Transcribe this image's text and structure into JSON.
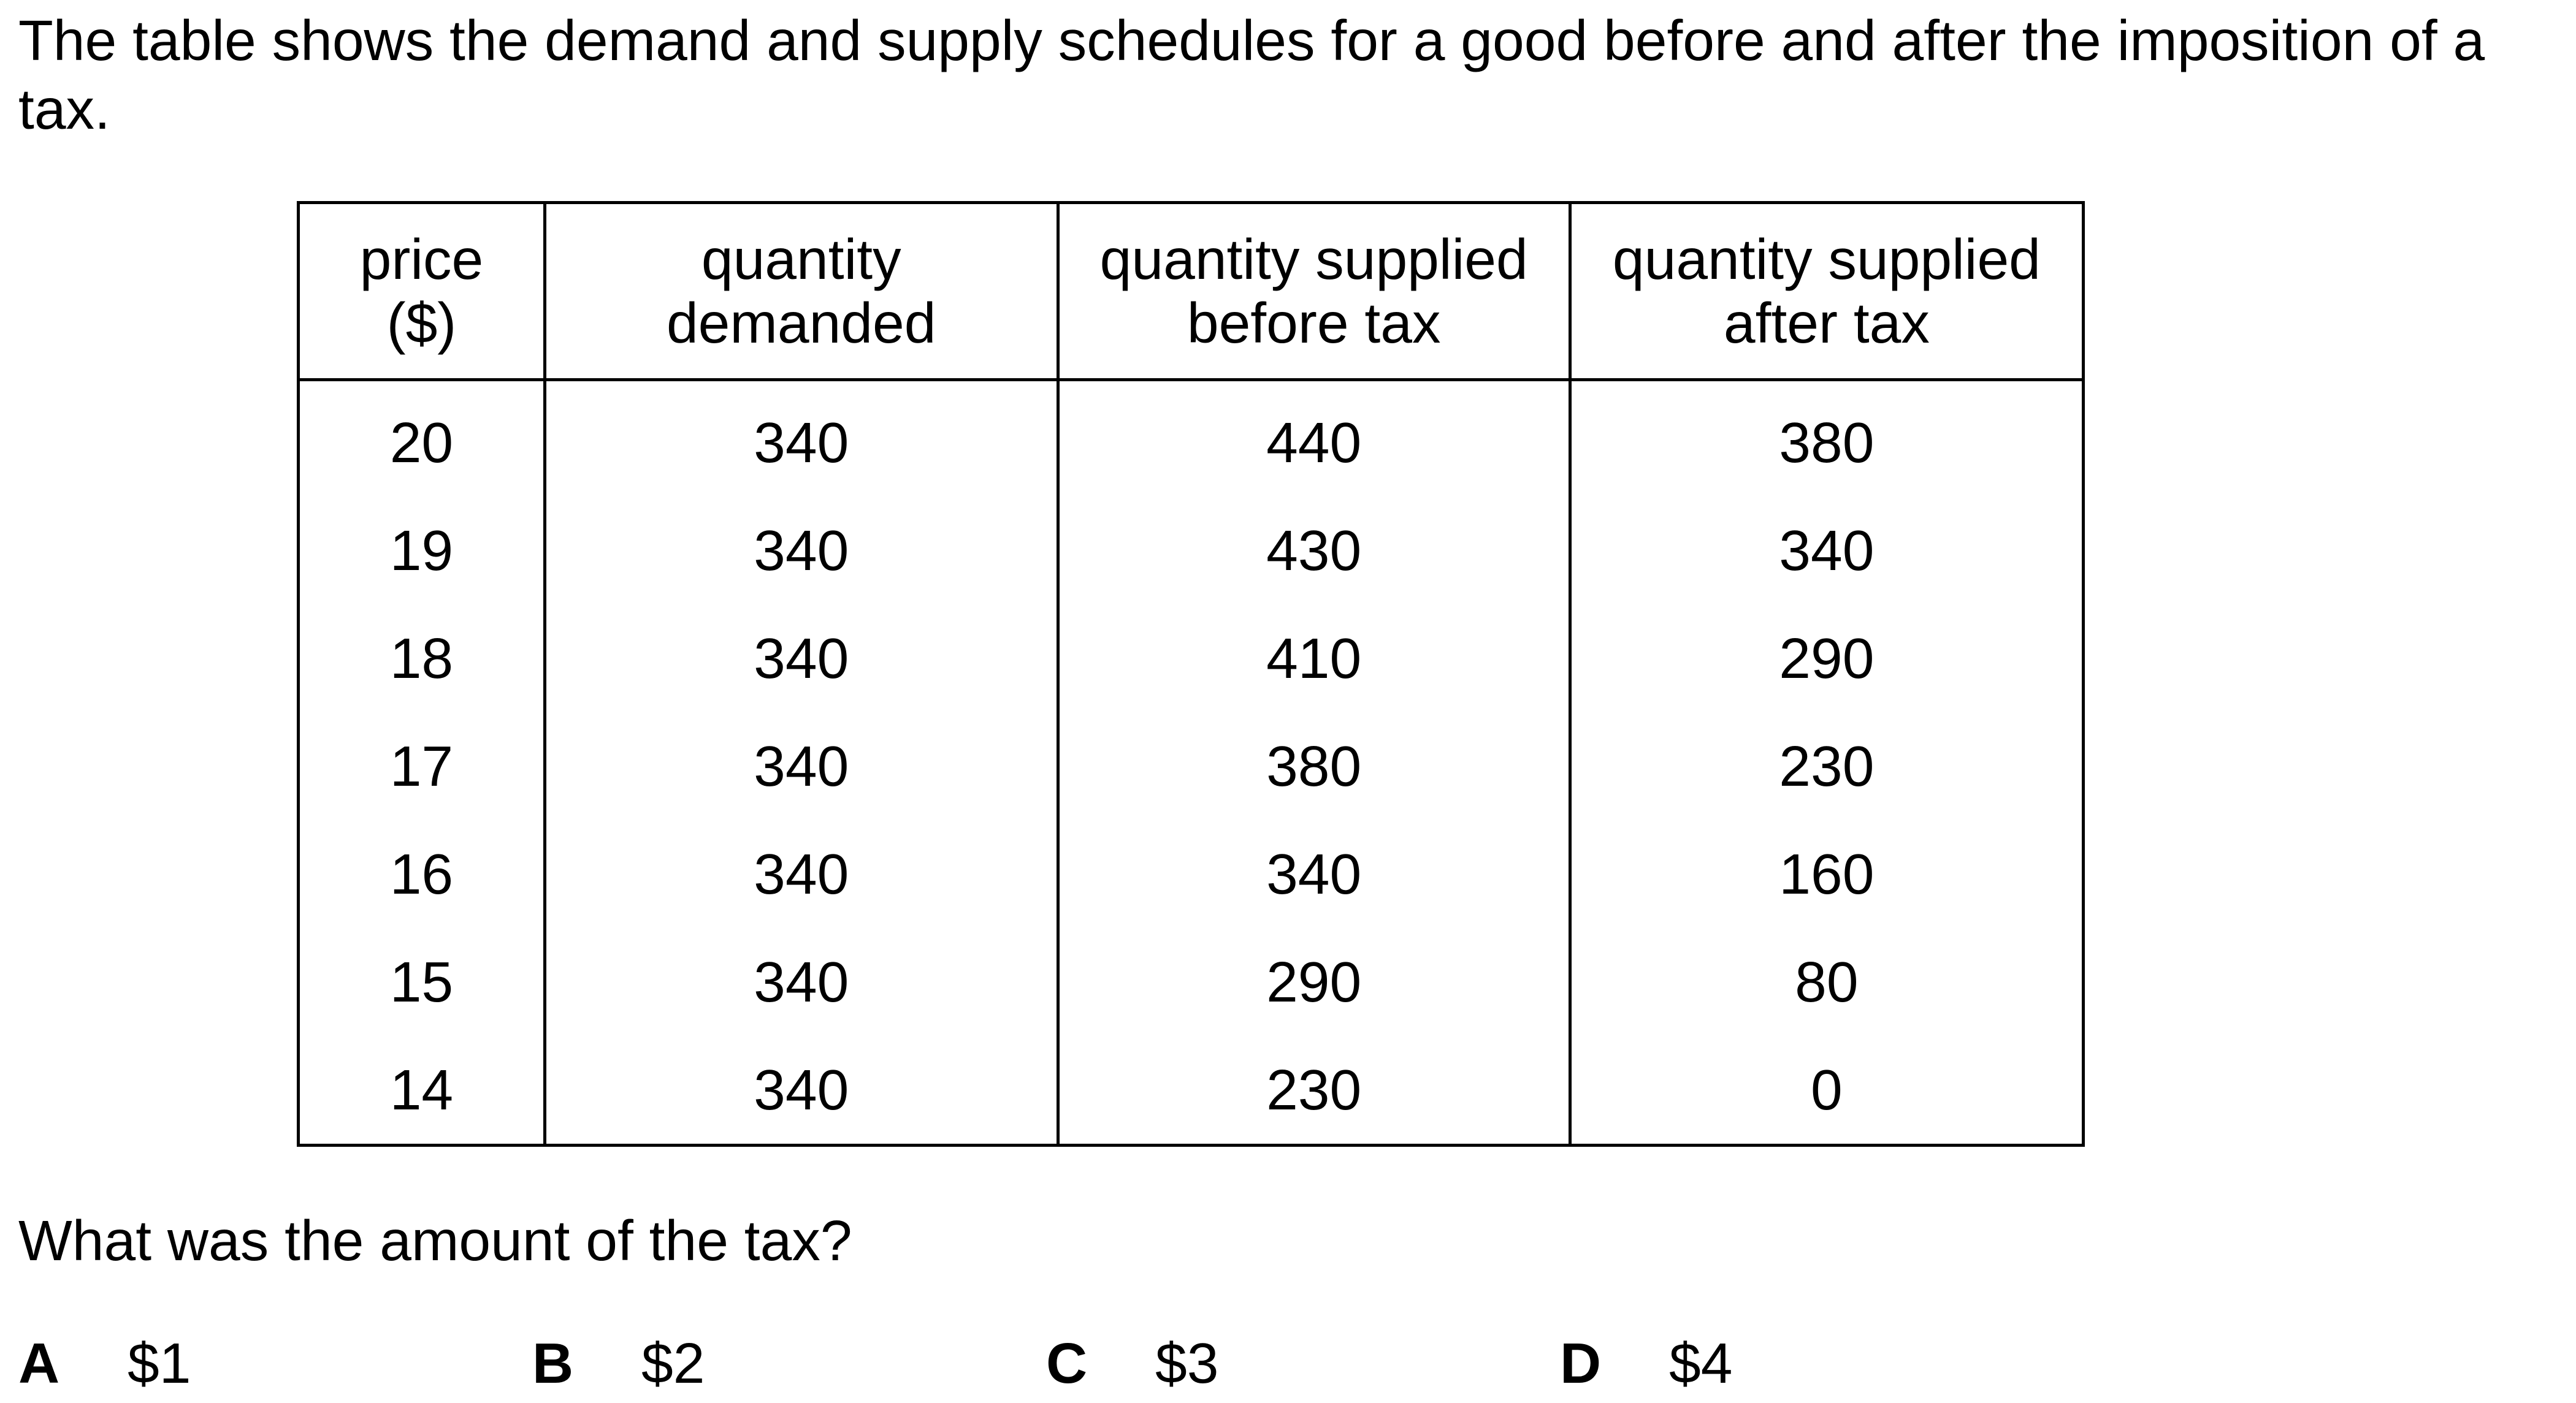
{
  "intro_text": "The table shows the demand and supply schedules for a good before and after the imposition of a tax.",
  "table": {
    "headers": [
      {
        "line1": "price",
        "line2": "($)"
      },
      {
        "line1": "quantity",
        "line2": "demanded"
      },
      {
        "line1": "quantity supplied",
        "line2": "before tax"
      },
      {
        "line1": "quantity supplied",
        "line2": "after tax"
      }
    ],
    "rows": [
      [
        "20",
        "340",
        "440",
        "380"
      ],
      [
        "19",
        "340",
        "430",
        "340"
      ],
      [
        "18",
        "340",
        "410",
        "290"
      ],
      [
        "17",
        "340",
        "380",
        "230"
      ],
      [
        "16",
        "340",
        "340",
        "160"
      ],
      [
        "15",
        "340",
        "290",
        "80"
      ],
      [
        "14",
        "340",
        "230",
        "0"
      ]
    ]
  },
  "question": "What was the amount of the tax?",
  "options": [
    {
      "letter": "A",
      "text": "$1"
    },
    {
      "letter": "B",
      "text": "$2"
    },
    {
      "letter": "C",
      "text": "$3"
    },
    {
      "letter": "D",
      "text": "$4"
    }
  ]
}
